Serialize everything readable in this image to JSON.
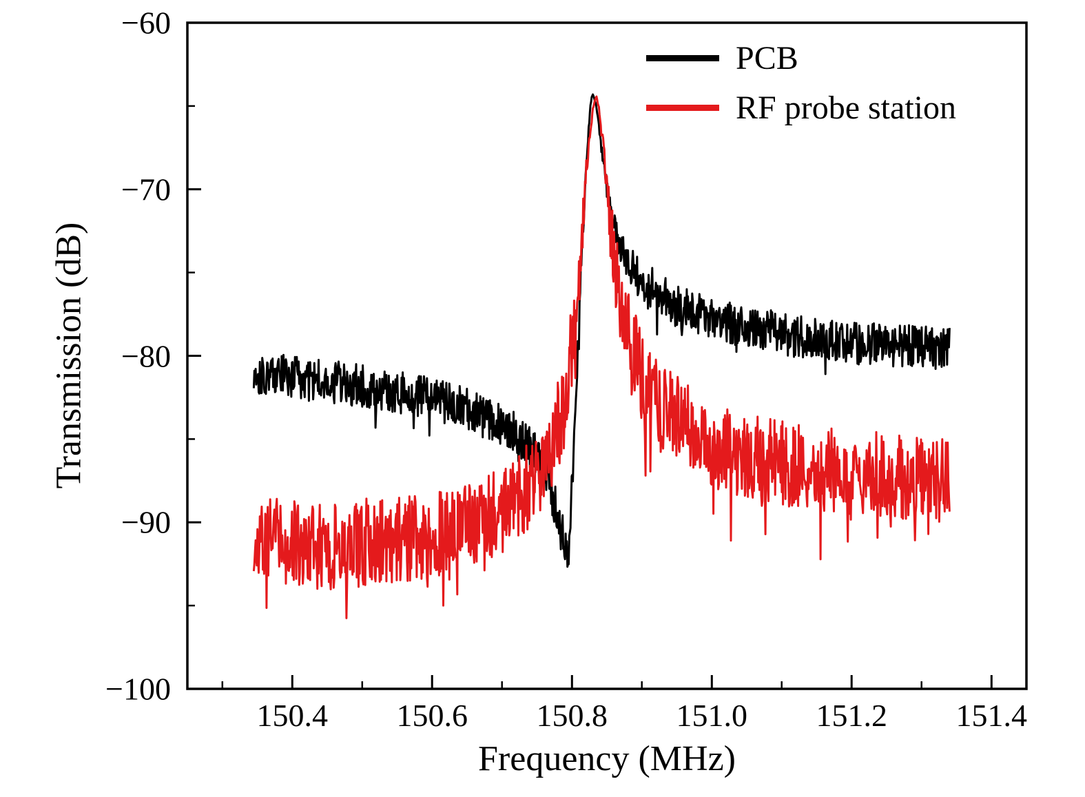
{
  "chart_data": {
    "type": "line",
    "title": "",
    "xlabel": "Frequency (MHz)",
    "ylabel": "Transmission (dB)",
    "xlim": [
      150.25,
      151.45
    ],
    "ylim": [
      -100,
      -60
    ],
    "xticks": [
      150.4,
      150.6,
      150.8,
      151.0,
      151.2,
      151.4
    ],
    "xtick_labels": [
      "150.4",
      "150.6",
      "150.8",
      "151.0",
      "151.2",
      "151.4"
    ],
    "yticks": [
      -60,
      -70,
      -80,
      -90,
      -100
    ],
    "ytick_labels": [
      "−60",
      "−70",
      "−80",
      "−90",
      "−100"
    ],
    "grid": false,
    "legend": {
      "position": "top-right",
      "entries": [
        {
          "label": "PCB",
          "color": "#000000"
        },
        {
          "label": "RF probe station",
          "color": "#e41a1c"
        }
      ]
    },
    "series": [
      {
        "name": "PCB",
        "color": "#000000",
        "x_start": 150.345,
        "x_end": 151.34,
        "points": 1150,
        "noise_db": 1.3,
        "spike_p": 0.05,
        "spike_db": 1.8,
        "seed": 101,
        "peak_x": 150.83,
        "peak_y": -64.3,
        "keypoints": [
          [
            150.345,
            -81.0
          ],
          [
            150.4,
            -81.3
          ],
          [
            150.5,
            -81.8
          ],
          [
            150.6,
            -82.5
          ],
          [
            150.65,
            -83.2
          ],
          [
            150.7,
            -84.2
          ],
          [
            150.73,
            -85.0
          ],
          [
            150.755,
            -86.3
          ],
          [
            150.77,
            -88.0
          ],
          [
            150.785,
            -90.5
          ],
          [
            150.792,
            -92.0
          ],
          [
            150.797,
            -91.0
          ],
          [
            150.802,
            -86.0
          ],
          [
            150.808,
            -80.0
          ],
          [
            150.814,
            -74.0
          ],
          [
            150.82,
            -68.5
          ],
          [
            150.826,
            -65.2
          ],
          [
            150.828,
            -64.5
          ],
          [
            150.83,
            -64.3
          ],
          [
            150.835,
            -65.0
          ],
          [
            150.842,
            -67.5
          ],
          [
            150.85,
            -70.0
          ],
          [
            150.86,
            -72.3
          ],
          [
            150.875,
            -74.0
          ],
          [
            150.9,
            -75.5
          ],
          [
            150.94,
            -76.8
          ],
          [
            151.0,
            -77.8
          ],
          [
            151.1,
            -78.7
          ],
          [
            151.2,
            -79.2
          ],
          [
            151.34,
            -79.6
          ]
        ]
      },
      {
        "name": "RF probe station",
        "color": "#e41a1c",
        "x_start": 150.345,
        "x_end": 151.34,
        "points": 1150,
        "noise_db": 2.6,
        "spike_p": 0.08,
        "spike_db": 4.0,
        "seed": 202,
        "peak_x": 150.835,
        "peak_y": -64.4,
        "keypoints": [
          [
            150.345,
            -91.0
          ],
          [
            150.4,
            -91.3
          ],
          [
            150.45,
            -91.5
          ],
          [
            150.5,
            -91.2
          ],
          [
            150.55,
            -91.0
          ],
          [
            150.6,
            -90.8
          ],
          [
            150.65,
            -90.3
          ],
          [
            150.68,
            -89.8
          ],
          [
            150.71,
            -89.0
          ],
          [
            150.73,
            -88.2
          ],
          [
            150.75,
            -87.2
          ],
          [
            150.77,
            -85.5
          ],
          [
            150.785,
            -83.5
          ],
          [
            150.795,
            -81.0
          ],
          [
            150.803,
            -78.0
          ],
          [
            150.81,
            -74.5
          ],
          [
            150.818,
            -70.5
          ],
          [
            150.825,
            -67.0
          ],
          [
            150.831,
            -64.9
          ],
          [
            150.835,
            -64.4
          ],
          [
            150.84,
            -65.5
          ],
          [
            150.847,
            -68.5
          ],
          [
            150.855,
            -72.0
          ],
          [
            150.863,
            -75.0
          ],
          [
            150.872,
            -77.5
          ],
          [
            150.885,
            -79.5
          ],
          [
            150.9,
            -81.0
          ],
          [
            150.93,
            -83.0
          ],
          [
            150.97,
            -84.5
          ],
          [
            151.0,
            -85.3
          ],
          [
            151.05,
            -86.0
          ],
          [
            151.12,
            -86.6
          ],
          [
            151.2,
            -87.0
          ],
          [
            151.34,
            -87.6
          ]
        ]
      }
    ]
  }
}
